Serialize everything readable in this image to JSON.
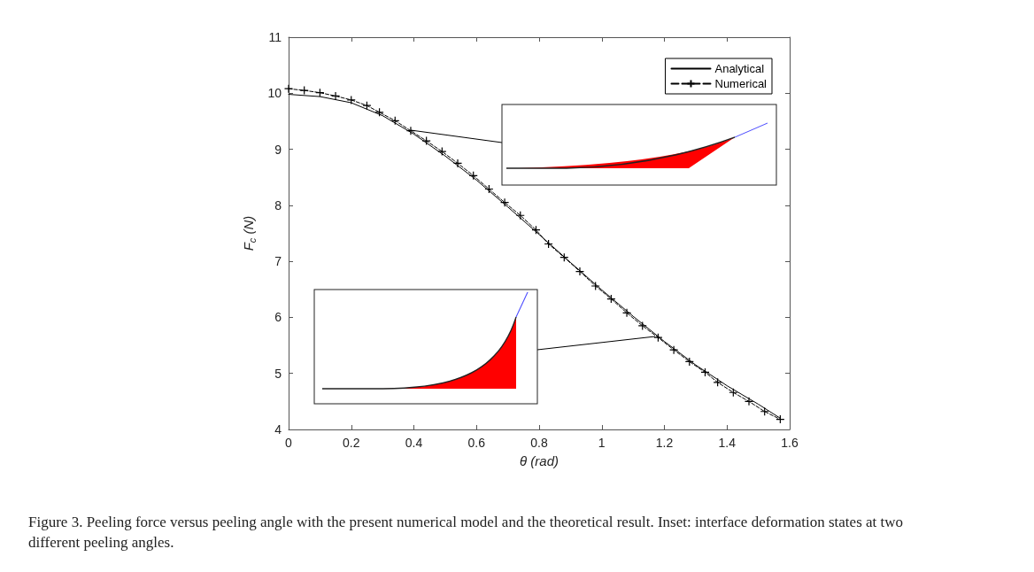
{
  "chart_data": {
    "type": "line",
    "xlabel": "θ (rad)",
    "ylabel": "F$_{c}$ (N)",
    "xlim": [
      0,
      1.6
    ],
    "xticks": [
      0,
      0.2,
      0.4,
      0.6,
      0.8,
      1,
      1.2,
      1.4,
      1.6
    ],
    "ylim": [
      4,
      11
    ],
    "yticks": [
      4,
      5,
      6,
      7,
      8,
      9,
      10,
      11
    ],
    "grid": false,
    "legend": "top right",
    "series": [
      {
        "name": "Analytical",
        "color": "#000000",
        "line_style": "solid",
        "marker": "none",
        "x": [
          0,
          0.1,
          0.2,
          0.3,
          0.4,
          0.5,
          0.6,
          0.7,
          0.8,
          0.9,
          1.0,
          1.1,
          1.2,
          1.3,
          1.4,
          1.5,
          1.57
        ],
        "values": [
          9.98,
          9.94,
          9.83,
          9.6,
          9.27,
          8.88,
          8.45,
          7.97,
          7.48,
          6.98,
          6.49,
          6.02,
          5.57,
          5.15,
          4.78,
          4.45,
          4.2
        ]
      },
      {
        "name": "Numerical",
        "color": "#000000",
        "line_style": "dashed",
        "marker": "cross",
        "x": [
          0,
          0.05,
          0.1,
          0.15,
          0.2,
          0.25,
          0.29,
          0.34,
          0.39,
          0.44,
          0.49,
          0.54,
          0.59,
          0.64,
          0.69,
          0.74,
          0.79,
          0.83,
          0.88,
          0.93,
          0.98,
          1.03,
          1.08,
          1.13,
          1.18,
          1.23,
          1.28,
          1.33,
          1.37,
          1.42,
          1.47,
          1.52,
          1.57
        ],
        "values": [
          10.08,
          10.05,
          10.01,
          9.95,
          9.88,
          9.78,
          9.66,
          9.51,
          9.33,
          9.15,
          8.96,
          8.75,
          8.53,
          8.29,
          8.05,
          7.82,
          7.56,
          7.31,
          7.07,
          6.82,
          6.56,
          6.33,
          6.08,
          5.85,
          5.64,
          5.42,
          5.21,
          5.02,
          4.84,
          4.66,
          4.5,
          4.32,
          4.18
        ]
      }
    ],
    "annotations": [
      "Figure 3. Peeling force versus peeling angle with the present numerical model and the theoretical result. Inset: interface deformation states at two different peeling angles."
    ]
  }
}
